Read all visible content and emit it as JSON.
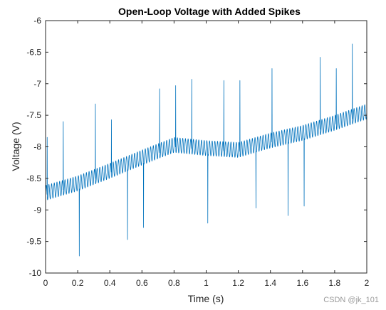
{
  "chart_data": {
    "type": "line",
    "title": "Open-Loop Voltage with Added Spikes",
    "xlabel": "Time (s)",
    "ylabel": "Voltage (V)",
    "xlim": [
      0,
      2
    ],
    "ylim": [
      -10,
      -6
    ],
    "xticks": [
      0,
      0.2,
      0.4,
      0.6,
      0.8,
      1,
      1.2,
      1.4,
      1.6,
      1.8,
      2
    ],
    "xtick_labels": [
      "0",
      "0.2",
      "0.4",
      "0.6",
      "0.8",
      "1",
      "1.2",
      "1.4",
      "1.6",
      "1.8",
      "2"
    ],
    "yticks": [
      -10,
      -9.5,
      -9,
      -8.5,
      -8,
      -7.5,
      -7,
      -6.5,
      -6
    ],
    "ytick_labels": [
      "-10",
      "-9.5",
      "-9",
      "-8.5",
      "-8",
      "-7.5",
      "-7",
      "-6.5",
      "-6"
    ],
    "grid": false,
    "line_color": "#0072BD",
    "series": [
      {
        "trend": {
          "x": [
            0,
            0.2,
            0.4,
            0.6,
            0.8,
            1.0,
            1.2,
            1.4,
            1.6,
            1.8,
            2.0
          ],
          "y": [
            -8.73,
            -8.58,
            -8.38,
            -8.17,
            -7.97,
            -8.02,
            -8.05,
            -7.9,
            -7.78,
            -7.62,
            -7.44
          ]
        },
        "ripple": {
          "frequency_hz": 60,
          "amplitude_v": 0.12
        },
        "spikes": [
          {
            "x": 0.01,
            "y": -7.85
          },
          {
            "x": 0.11,
            "y": -7.6
          },
          {
            "x": 0.21,
            "y": -9.73
          },
          {
            "x": 0.31,
            "y": -7.32
          },
          {
            "x": 0.41,
            "y": -7.57
          },
          {
            "x": 0.51,
            "y": -9.47
          },
          {
            "x": 0.61,
            "y": -9.28
          },
          {
            "x": 0.71,
            "y": -7.08
          },
          {
            "x": 0.81,
            "y": -7.03
          },
          {
            "x": 0.91,
            "y": -6.93
          },
          {
            "x": 1.01,
            "y": -9.21
          },
          {
            "x": 1.11,
            "y": -6.95
          },
          {
            "x": 1.21,
            "y": -6.95
          },
          {
            "x": 1.31,
            "y": -8.97
          },
          {
            "x": 1.41,
            "y": -6.76
          },
          {
            "x": 1.51,
            "y": -9.09
          },
          {
            "x": 1.61,
            "y": -8.94
          },
          {
            "x": 1.71,
            "y": -6.58
          },
          {
            "x": 1.81,
            "y": -6.76
          },
          {
            "x": 1.91,
            "y": -6.37
          }
        ]
      }
    ]
  },
  "watermark": "CSDN @jk_101"
}
